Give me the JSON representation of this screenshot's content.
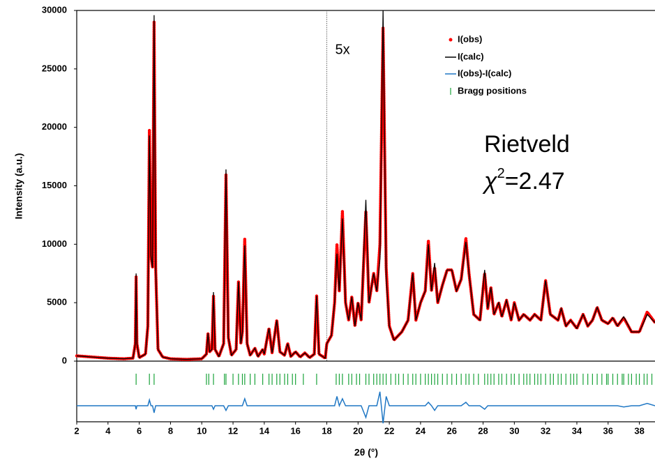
{
  "chart_data": {
    "type": "line",
    "xlabel": "2θ (°)",
    "ylabel": "Intensity (a.u.)",
    "x": [
      2,
      3,
      4,
      5,
      5.6,
      5.75,
      5.8,
      5.85,
      6.0,
      6.4,
      6.55,
      6.65,
      6.75,
      6.85,
      6.95,
      7.05,
      7.2,
      7.5,
      8,
      9,
      10,
      10.3,
      10.4,
      10.5,
      10.65,
      10.75,
      10.85,
      11.1,
      11.4,
      11.55,
      11.7,
      11.9,
      12.2,
      12.35,
      12.5,
      12.6,
      12.75,
      12.9,
      13.1,
      13.4,
      13.6,
      13.9,
      14.0,
      14.3,
      14.5,
      14.8,
      15.0,
      15.3,
      15.5,
      15.7,
      16.0,
      16.3,
      16.6,
      16.9,
      17.2,
      17.35,
      17.5,
      17.9,
      18.0,
      18.3,
      18.5,
      18.65,
      18.8,
      19.0,
      19.2,
      19.4,
      19.6,
      19.8,
      20.0,
      20.2,
      20.5,
      20.7,
      21.0,
      21.2,
      21.4,
      21.6,
      21.8,
      22.0,
      22.3,
      22.8,
      23.2,
      23.5,
      23.7,
      24.0,
      24.3,
      24.5,
      24.7,
      24.9,
      25.1,
      25.4,
      25.7,
      26.0,
      26.3,
      26.6,
      26.9,
      27.1,
      27.4,
      27.8,
      28.1,
      28.3,
      28.5,
      28.7,
      29.0,
      29.2,
      29.5,
      29.8,
      30.0,
      30.3,
      30.6,
      31.0,
      31.3,
      31.7,
      32.0,
      32.3,
      32.8,
      33.0,
      33.3,
      33.6,
      34.0,
      34.4,
      34.7,
      35.0,
      35.3,
      35.6,
      36.0,
      36.3,
      36.6,
      37.0,
      37.5,
      38.0,
      38.5,
      39.0
    ],
    "series": [
      {
        "name": "I(obs)",
        "color": "#ff0000",
        "values": [
          450,
          350,
          250,
          200,
          250,
          1500,
          7200,
          1500,
          300,
          600,
          3000,
          19800,
          9000,
          8000,
          29000,
          8000,
          1000,
          350,
          200,
          150,
          200,
          600,
          2400,
          800,
          1000,
          5600,
          1000,
          400,
          1500,
          16000,
          2000,
          500,
          1000,
          6800,
          1500,
          2500,
          10500,
          1500,
          500,
          1100,
          400,
          1000,
          600,
          2800,
          700,
          3500,
          800,
          500,
          1500,
          400,
          800,
          350,
          700,
          300,
          600,
          5600,
          600,
          250,
          1500,
          2200,
          5000,
          10000,
          6000,
          12800,
          5000,
          3500,
          5500,
          3000,
          5000,
          3500,
          12800,
          5000,
          7500,
          6000,
          10000,
          28500,
          8000,
          3000,
          1800,
          2500,
          3500,
          7500,
          3500,
          5000,
          6000,
          10300,
          6000,
          8000,
          5000,
          6500,
          7800,
          7800,
          6000,
          7000,
          10500,
          7500,
          4000,
          3500,
          7500,
          4500,
          6300,
          4000,
          5000,
          3800,
          5200,
          3500,
          5000,
          3500,
          4000,
          3500,
          4000,
          3500,
          6900,
          4000,
          3500,
          4500,
          3000,
          3500,
          2800,
          4000,
          3000,
          3500,
          4600,
          3500,
          3200,
          3700,
          3000,
          3700,
          2500,
          2500,
          4200,
          3300
        ]
      },
      {
        "name": "I(calc)",
        "color": "#000000",
        "values": [
          450,
          350,
          250,
          200,
          250,
          1500,
          7500,
          1500,
          300,
          600,
          3000,
          19300,
          9000,
          8000,
          29600,
          8000,
          1000,
          350,
          200,
          150,
          200,
          600,
          2400,
          800,
          1000,
          5900,
          1000,
          400,
          1500,
          16400,
          2000,
          500,
          1000,
          6800,
          1500,
          2500,
          9900,
          1500,
          500,
          1100,
          400,
          1000,
          600,
          2800,
          700,
          3500,
          800,
          500,
          1500,
          400,
          800,
          350,
          700,
          300,
          600,
          5600,
          600,
          250,
          1500,
          2200,
          5000,
          9200,
          6000,
          12200,
          5000,
          3500,
          5500,
          3000,
          5000,
          3500,
          13800,
          5000,
          7500,
          6000,
          8800,
          30000,
          7200,
          3000,
          1800,
          2500,
          3500,
          7500,
          3500,
          5000,
          6000,
          10000,
          6000,
          8400,
          5000,
          6500,
          7800,
          7800,
          6000,
          7000,
          10200,
          7500,
          4000,
          3500,
          7800,
          4500,
          6300,
          4000,
          5000,
          3800,
          5200,
          3500,
          5000,
          3500,
          4000,
          3500,
          4000,
          3500,
          6900,
          4000,
          3500,
          4500,
          3000,
          3500,
          2800,
          4000,
          3000,
          3500,
          4600,
          3500,
          3200,
          3700,
          3000,
          3800,
          2500,
          2500,
          4000,
          3300
        ]
      },
      {
        "name": "I(obs)-I(calc)",
        "color": "#1f77c4",
        "values": [
          0,
          0,
          0,
          0,
          0,
          0,
          -300,
          0,
          0,
          0,
          0,
          500,
          0,
          0,
          -600,
          0,
          0,
          0,
          0,
          0,
          0,
          0,
          0,
          0,
          0,
          -300,
          0,
          0,
          0,
          -400,
          0,
          0,
          0,
          0,
          0,
          0,
          600,
          0,
          0,
          0,
          0,
          0,
          0,
          0,
          0,
          0,
          0,
          0,
          0,
          0,
          0,
          0,
          0,
          0,
          0,
          0,
          0,
          0,
          0,
          0,
          0,
          800,
          0,
          600,
          0,
          0,
          0,
          0,
          0,
          0,
          -1000,
          0,
          0,
          0,
          1200,
          -1500,
          800,
          0,
          0,
          0,
          0,
          0,
          0,
          0,
          0,
          300,
          0,
          -400,
          0,
          0,
          0,
          0,
          0,
          0,
          300,
          0,
          0,
          0,
          -300,
          0,
          0,
          0,
          0,
          0,
          0,
          0,
          0,
          0,
          0,
          0,
          0,
          0,
          0,
          0,
          0,
          0,
          0,
          0,
          0,
          0,
          0,
          0,
          0,
          0,
          0,
          0,
          0,
          -100,
          0,
          0,
          200,
          0
        ]
      }
    ],
    "bragg": {
      "name": "Bragg positions",
      "color": "#1aa33a",
      "x": [
        5.8,
        6.65,
        6.95,
        10.3,
        10.45,
        10.75,
        11.45,
        11.55,
        12.0,
        12.35,
        12.6,
        12.75,
        13.1,
        13.4,
        13.9,
        14.3,
        14.5,
        14.8,
        15.0,
        15.3,
        15.5,
        15.8,
        16.0,
        16.5,
        17.35,
        18.6,
        18.8,
        19.0,
        19.4,
        19.6,
        19.9,
        20.1,
        20.5,
        20.7,
        21.0,
        21.2,
        21.4,
        21.6,
        21.8,
        22.1,
        22.4,
        22.6,
        22.9,
        23.2,
        23.5,
        23.7,
        24.0,
        24.3,
        24.5,
        24.7,
        24.9,
        25.1,
        25.4,
        25.7,
        26.0,
        26.3,
        26.6,
        26.9,
        27.1,
        27.4,
        27.7,
        28.1,
        28.3,
        28.5,
        28.7,
        29.0,
        29.2,
        29.5,
        29.8,
        30.0,
        30.3,
        30.6,
        30.8,
        31.0,
        31.3,
        31.5,
        31.7,
        32.0,
        32.3,
        32.5,
        32.8,
        33.0,
        33.3,
        33.6,
        33.8,
        34.0,
        34.4,
        34.7,
        35.0,
        35.3,
        35.6,
        35.9,
        36.0,
        36.3,
        36.6,
        36.9,
        37.0,
        37.3,
        37.5,
        37.8,
        38.0,
        38.3,
        38.5,
        38.8
      ]
    },
    "scale_break": {
      "x": 18,
      "label": "5x"
    },
    "annotation": {
      "text": "Rietveld",
      "chi_symbol": "χ",
      "chi_power": "2",
      "chi_value": "=2.47"
    },
    "xlim": [
      2,
      39
    ],
    "ylim": [
      0,
      30000
    ],
    "xticks": [
      2,
      4,
      6,
      8,
      10,
      12,
      14,
      16,
      18,
      20,
      22,
      24,
      26,
      28,
      30,
      32,
      34,
      36,
      38
    ],
    "yticks": [
      0,
      5000,
      10000,
      15000,
      20000,
      25000,
      30000
    ],
    "legend": "upper right"
  }
}
